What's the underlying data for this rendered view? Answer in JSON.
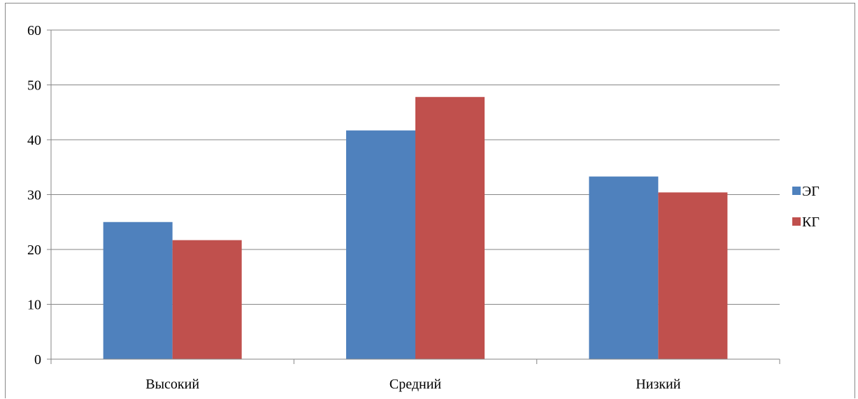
{
  "chart_data": {
    "type": "bar",
    "categories": [
      "Высокий",
      "Средний",
      "Низкий"
    ],
    "series": [
      {
        "name": "ЭГ",
        "values": [
          25.0,
          41.7,
          33.3
        ],
        "color": "#4F81BD"
      },
      {
        "name": "КГ",
        "values": [
          21.7,
          47.8,
          30.4
        ],
        "color": "#C0504D"
      }
    ],
    "ylim": [
      0,
      60
    ],
    "yticks": [
      "0",
      "10",
      "20",
      "30",
      "40",
      "50",
      "60"
    ],
    "grid": true,
    "legend": "right"
  }
}
